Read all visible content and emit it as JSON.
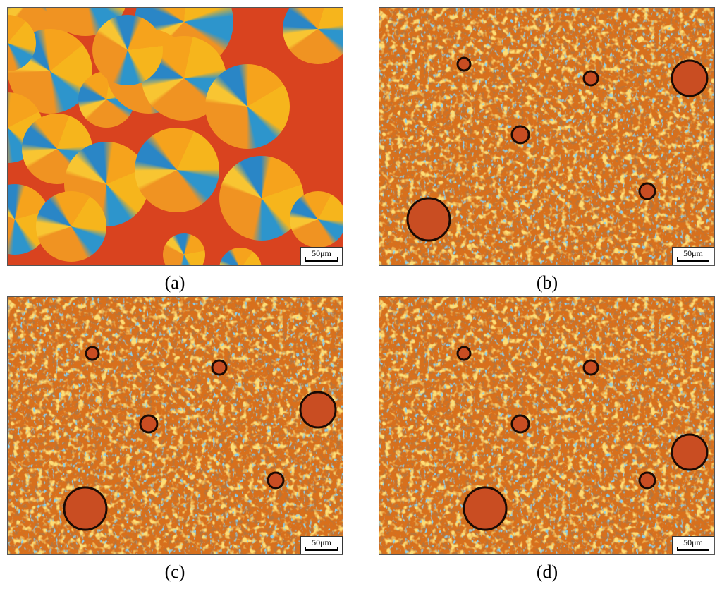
{
  "panels": [
    {
      "label": "(a)",
      "scale_bar": "50μm"
    },
    {
      "label": "(b)",
      "scale_bar": "50μm"
    },
    {
      "label": "(c)",
      "scale_bar": "50μm"
    },
    {
      "label": "(d)",
      "scale_bar": "50μm"
    }
  ]
}
